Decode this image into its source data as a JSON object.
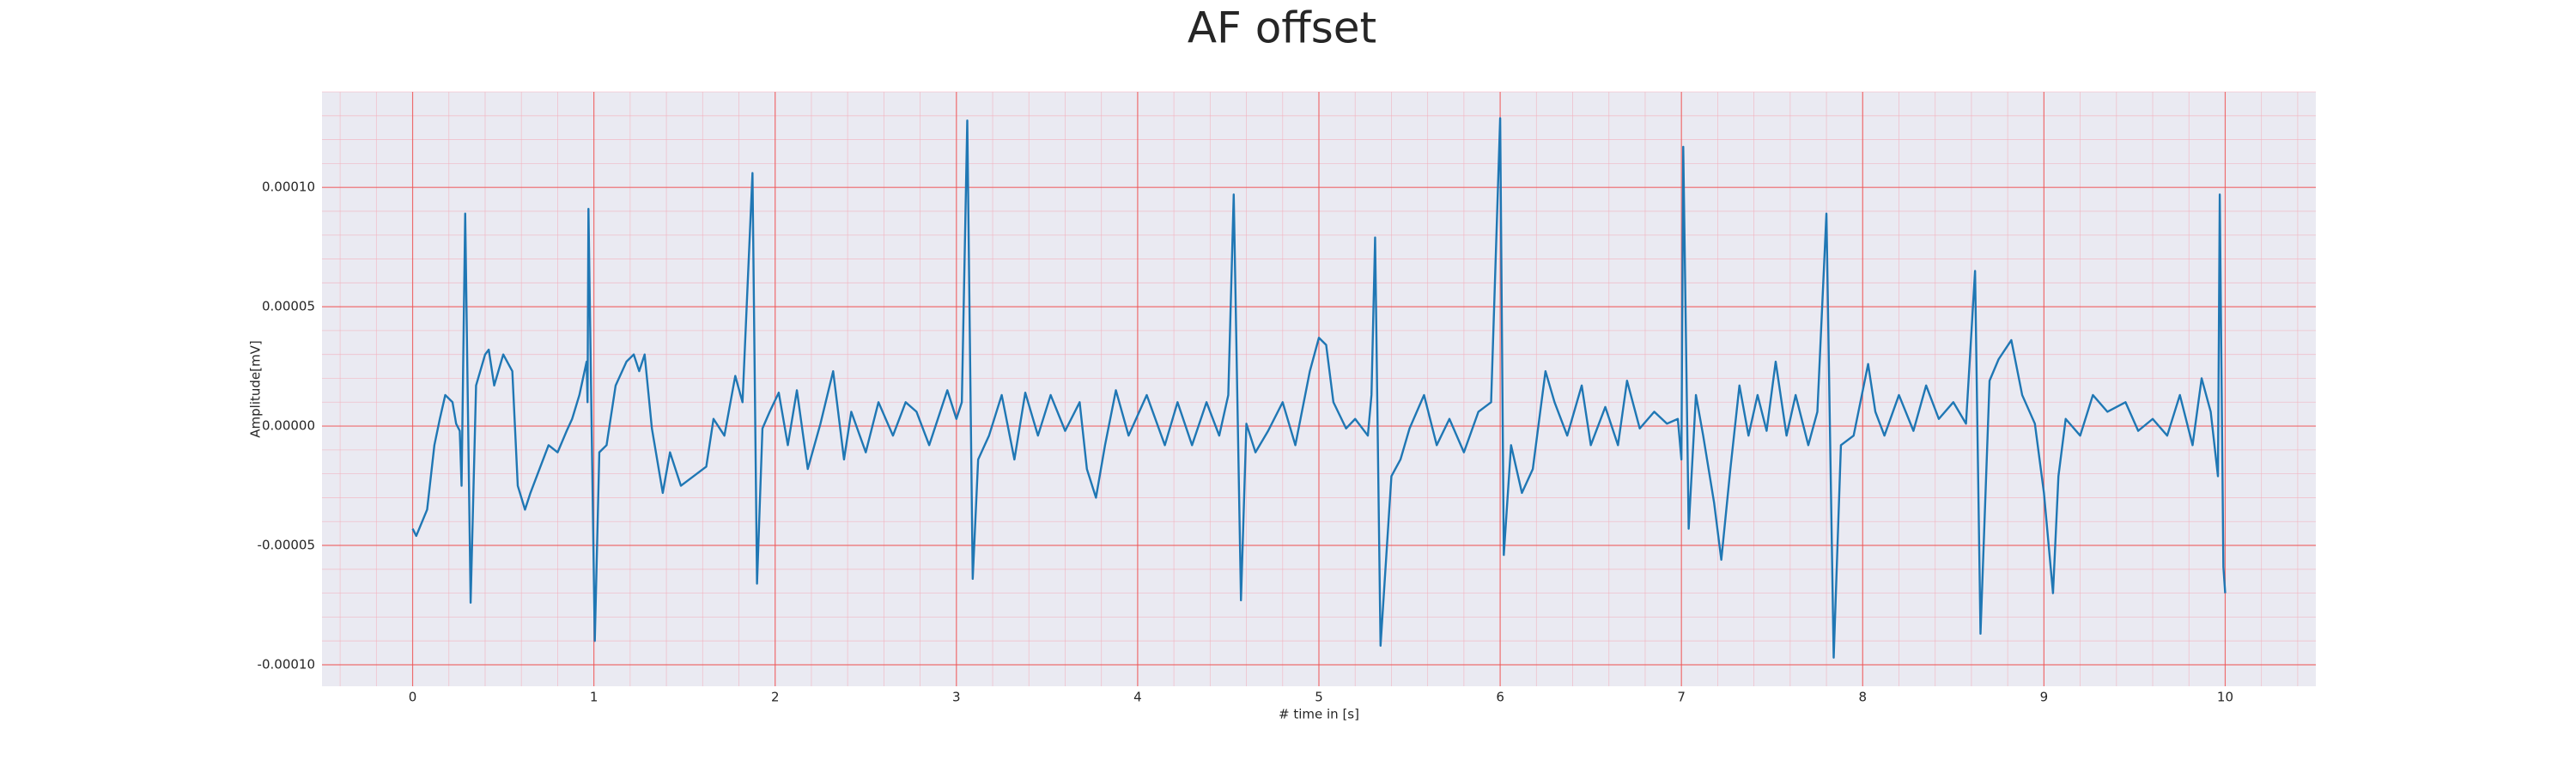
{
  "chart_data": {
    "type": "line",
    "title": "AF offset",
    "xlabel": "# time in [s]",
    "ylabel": "Amplitude[mV]",
    "xlim": [
      -0.5,
      10.5
    ],
    "ylim": [
      -0.000109,
      0.00014
    ],
    "xticks": [
      0,
      1,
      2,
      3,
      4,
      5,
      6,
      7,
      8,
      9,
      10
    ],
    "yticks": [
      {
        "value": -0.0001,
        "label": "-0.00010"
      },
      {
        "value": -5e-05,
        "label": "-0.00005"
      },
      {
        "value": 0,
        "label": "0.00000"
      },
      {
        "value": 5e-05,
        "label": "0.00005"
      },
      {
        "value": 0.0001,
        "label": "0.00010"
      }
    ],
    "grid": true,
    "minor_grid": true,
    "background": "#eaeaf2",
    "series": [
      {
        "name": "AF offset",
        "color": "#1f77b4",
        "x": [
          0,
          0.02,
          0.08,
          0.12,
          0.15,
          0.18,
          0.22,
          0.24,
          0.26,
          0.27,
          0.29,
          0.32,
          0.35,
          0.4,
          0.42,
          0.45,
          0.5,
          0.55,
          0.58,
          0.62,
          0.65,
          0.7,
          0.75,
          0.8,
          0.85,
          0.88,
          0.92,
          0.96,
          0.965,
          0.97,
          1.005,
          1.03,
          1.07,
          1.12,
          1.18,
          1.22,
          1.25,
          1.28,
          1.32,
          1.38,
          1.42,
          1.48,
          1.55,
          1.62,
          1.66,
          1.72,
          1.78,
          1.82,
          1.875,
          1.9,
          1.93,
          1.97,
          2.02,
          2.07,
          2.12,
          2.18,
          2.25,
          2.32,
          2.38,
          2.42,
          2.5,
          2.57,
          2.65,
          2.72,
          2.78,
          2.85,
          2.95,
          3.0,
          3.03,
          3.06,
          3.09,
          3.12,
          3.18,
          3.25,
          3.32,
          3.38,
          3.45,
          3.52,
          3.6,
          3.68,
          3.72,
          3.77,
          3.82,
          3.88,
          3.95,
          4.05,
          4.15,
          4.22,
          4.3,
          4.38,
          4.45,
          4.5,
          4.53,
          4.57,
          4.6,
          4.65,
          4.72,
          4.8,
          4.87,
          4.95,
          5.0,
          5.04,
          5.08,
          5.15,
          5.2,
          5.27,
          5.29,
          5.31,
          5.34,
          5.4,
          5.45,
          5.5,
          5.58,
          5.65,
          5.72,
          5.8,
          5.88,
          5.95,
          6.0,
          6.02,
          6.06,
          6.12,
          6.18,
          6.25,
          6.3,
          6.37,
          6.45,
          6.5,
          6.58,
          6.65,
          6.7,
          6.77,
          6.85,
          6.92,
          6.98,
          7.0,
          7.01,
          7.04,
          7.08,
          7.12,
          7.18,
          7.22,
          7.27,
          7.32,
          7.37,
          7.42,
          7.47,
          7.52,
          7.58,
          7.63,
          7.7,
          7.75,
          7.8,
          7.84,
          7.88,
          7.95,
          8.03,
          8.07,
          8.12,
          8.2,
          8.28,
          8.35,
          8.42,
          8.5,
          8.57,
          8.62,
          8.65,
          8.7,
          8.75,
          8.82,
          8.88,
          8.95,
          9.0,
          9.05,
          9.08,
          9.12,
          9.2,
          9.27,
          9.35,
          9.45,
          9.52,
          9.6,
          9.68,
          9.75,
          9.82,
          9.87,
          9.92,
          9.96,
          9.97,
          9.99,
          10.0
        ],
        "values": [
          -4.3e-05,
          -4.6e-05,
          -3.5e-05,
          -8e-06,
          3e-06,
          1.3e-05,
          1e-05,
          1e-06,
          -2e-06,
          -2.5e-05,
          8.9e-05,
          -7.4e-05,
          1.7e-05,
          3e-05,
          3.2e-05,
          1.7e-05,
          3e-05,
          2.3e-05,
          -2.5e-05,
          -3.5e-05,
          -2.8e-05,
          -1.8e-05,
          -8e-06,
          -1.1e-05,
          -2e-06,
          3e-06,
          1.3e-05,
          2.7e-05,
          1e-05,
          9.1e-05,
          -9e-05,
          -1.1e-05,
          -8e-06,
          1.7e-05,
          2.7e-05,
          3e-05,
          2.3e-05,
          3e-05,
          -1e-06,
          -2.8e-05,
          -1.1e-05,
          -2.5e-05,
          -2.1e-05,
          -1.7e-05,
          3e-06,
          -4e-06,
          2.1e-05,
          1e-05,
          0.000106,
          -6.6e-05,
          -1e-06,
          6e-06,
          1.4e-05,
          -8e-06,
          1.5e-05,
          -1.8e-05,
          1e-06,
          2.3e-05,
          -1.4e-05,
          6e-06,
          -1.1e-05,
          1e-05,
          -4e-06,
          1e-05,
          6e-06,
          -8e-06,
          1.5e-05,
          3e-06,
          1e-05,
          0.000128,
          -6.4e-05,
          -1.4e-05,
          -4e-06,
          1.3e-05,
          -1.4e-05,
          1.4e-05,
          -4e-06,
          1.3e-05,
          -2e-06,
          1e-05,
          -1.8e-05,
          -3e-05,
          -8e-06,
          1.5e-05,
          -4e-06,
          1.3e-05,
          -8e-06,
          1e-05,
          -8e-06,
          1e-05,
          -4e-06,
          1.3e-05,
          9.7e-05,
          -7.3e-05,
          1e-06,
          -1.1e-05,
          -2e-06,
          1e-05,
          -8e-06,
          2.3e-05,
          3.7e-05,
          3.4e-05,
          1e-05,
          -1e-06,
          3e-06,
          -4e-06,
          1.3e-05,
          7.9e-05,
          -9.2e-05,
          -2.1e-05,
          -1.4e-05,
          -1e-06,
          1.3e-05,
          -8e-06,
          3e-06,
          -1.1e-05,
          6e-06,
          1e-05,
          0.000129,
          -5.4e-05,
          -8e-06,
          -2.8e-05,
          -1.8e-05,
          2.3e-05,
          1e-05,
          -4e-06,
          1.7e-05,
          -8e-06,
          8e-06,
          -8e-06,
          1.9e-05,
          -1e-06,
          6e-06,
          1e-06,
          3e-06,
          -1.4e-05,
          0.000117,
          -4.3e-05,
          1.3e-05,
          -4e-06,
          -3.2e-05,
          -5.6e-05,
          -1.8e-05,
          1.7e-05,
          -4e-06,
          1.3e-05,
          -2e-06,
          2.7e-05,
          -4e-06,
          1.3e-05,
          -8e-06,
          6e-06,
          8.9e-05,
          -9.7e-05,
          -8e-06,
          -4e-06,
          2.6e-05,
          6e-06,
          -4e-06,
          1.3e-05,
          -2e-06,
          1.7e-05,
          3e-06,
          1e-05,
          1e-06,
          6.5e-05,
          -8.7e-05,
          1.9e-05,
          2.8e-05,
          3.6e-05,
          1.3e-05,
          1e-06,
          -2.8e-05,
          -7e-05,
          -2.1e-05,
          3e-06,
          -4e-06,
          1.3e-05,
          6e-06,
          1e-05,
          -2e-06,
          3e-06,
          -4e-06,
          1.3e-05,
          -8e-06,
          2e-05,
          6e-06,
          -2.1e-05,
          9.7e-05,
          -5.9e-05,
          -7e-05
        ]
      }
    ]
  }
}
